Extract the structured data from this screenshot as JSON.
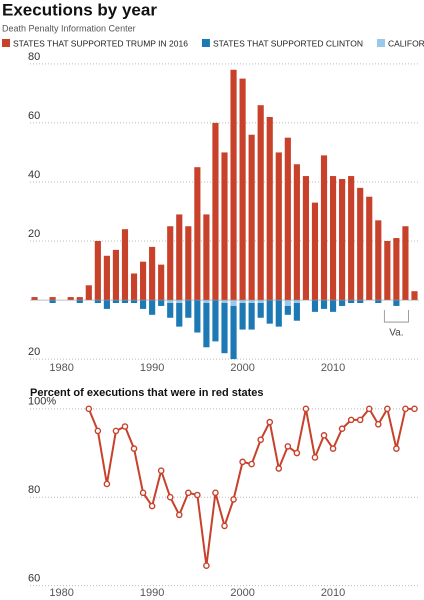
{
  "chart_data": [
    {
      "type": "bar",
      "stacked": true,
      "title": "Executions by year",
      "subtitle": "Death Penalty Information Center",
      "x": [
        1977,
        1978,
        1979,
        1980,
        1981,
        1982,
        1983,
        1984,
        1985,
        1986,
        1987,
        1988,
        1989,
        1990,
        1991,
        1992,
        1993,
        1994,
        1995,
        1996,
        1997,
        1998,
        1999,
        2000,
        2001,
        2002,
        2003,
        2004,
        2005,
        2006,
        2007,
        2008,
        2009,
        2010,
        2011,
        2012,
        2013,
        2014,
        2015,
        2016,
        2017,
        2018,
        2019
      ],
      "series": [
        {
          "name": "STATES THAT SUPPORTED TRUMP IN 2016",
          "color": "#c8412b",
          "values": [
            1,
            0,
            1,
            0,
            1,
            1,
            5,
            20,
            15,
            17,
            24,
            9,
            13,
            18,
            12,
            25,
            29,
            25,
            45,
            29,
            60,
            50,
            78,
            75,
            56,
            66,
            62,
            50,
            55,
            46,
            42,
            33,
            49,
            42,
            41,
            42,
            38,
            35,
            27,
            20,
            21,
            25,
            3
          ]
        },
        {
          "name": "CALIFORNIA",
          "color": "#9ac8e8",
          "values": [
            0,
            0,
            0,
            0,
            0,
            0,
            0,
            0,
            0,
            0,
            0,
            0,
            0,
            0,
            0,
            -1,
            -1,
            0,
            0,
            -1,
            0,
            -1,
            -2,
            -1,
            -1,
            -1,
            0,
            0,
            -2,
            -1,
            0,
            0,
            0,
            0,
            0,
            0,
            0,
            0,
            0,
            0,
            0,
            0,
            0
          ]
        },
        {
          "name": "STATES THAT SUPPORTED CLINTON",
          "color": "#1c79b4",
          "values": [
            0,
            0,
            -1,
            0,
            0,
            -1,
            0,
            -1,
            -3,
            -1,
            -1,
            -1,
            -3,
            -5,
            -2,
            -5,
            -8,
            -6,
            -11,
            -15,
            -14,
            -17,
            -18,
            -9,
            -9,
            -5,
            -8,
            -9,
            -3,
            -6,
            0,
            -4,
            -3,
            -4,
            -2,
            -1,
            -1,
            0,
            -1,
            0,
            -2,
            0,
            0
          ]
        }
      ],
      "legend_order": [
        0,
        2,
        1
      ],
      "xlim": [
        1976.5,
        2019.5
      ],
      "xticks": [
        1980,
        1990,
        2000,
        2010
      ],
      "ylim": [
        -22,
        83
      ],
      "yticks": [
        {
          "value": -20,
          "label": "20"
        },
        20,
        40,
        60,
        80
      ],
      "grid": true,
      "annotations": [
        {
          "text": "Va.",
          "x": [
            2016,
            2018
          ]
        }
      ]
    },
    {
      "type": "line",
      "title": "Percent of executions that were in red states",
      "x": [
        1983,
        1984,
        1985,
        1986,
        1987,
        1988,
        1989,
        1990,
        1991,
        1992,
        1993,
        1994,
        1995,
        1996,
        1997,
        1998,
        1999,
        2000,
        2001,
        2002,
        2003,
        2004,
        2005,
        2006,
        2007,
        2008,
        2009,
        2010,
        2011,
        2012,
        2013,
        2014,
        2015,
        2016,
        2017,
        2018,
        2019
      ],
      "series": [
        {
          "name": "Percent of executions that were in red states",
          "color": "#c8412b",
          "values": [
            100,
            95,
            83,
            95,
            96,
            91,
            81,
            78,
            86,
            80,
            76,
            81,
            80.5,
            64.5,
            81,
            73.5,
            79.5,
            88,
            87.5,
            93,
            97,
            86.5,
            91.5,
            90,
            100,
            89,
            94,
            91,
            95.5,
            97.5,
            97.5,
            100,
            96.5,
            100,
            91,
            100,
            100
          ]
        }
      ],
      "xlim": [
        1976.5,
        2019.5
      ],
      "xticks": [
        1980,
        1990,
        2000,
        2010
      ],
      "ylim": [
        59,
        102
      ],
      "yticks": [
        60,
        80,
        {
          "value": 100,
          "label": "100%"
        }
      ],
      "grid": true
    }
  ]
}
